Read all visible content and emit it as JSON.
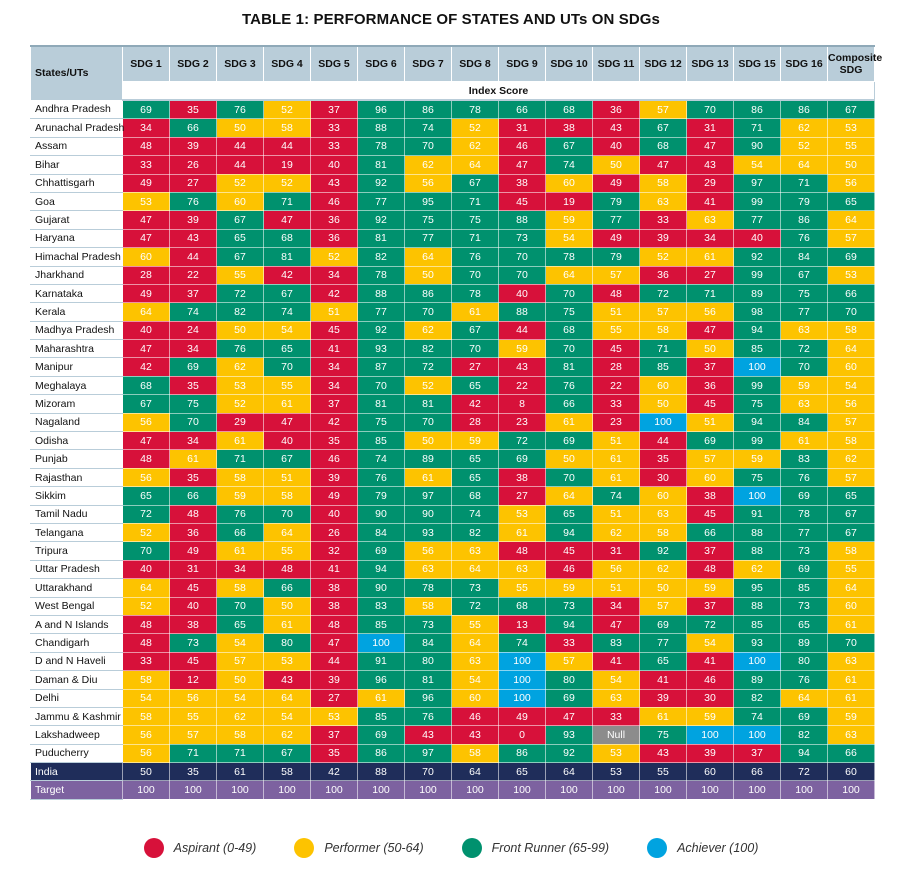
{
  "title": "TABLE 1: PERFORMANCE OF STATES AND UTs ON SDGs",
  "header": {
    "states_label": "States/UTs",
    "columns": [
      "SDG 1",
      "SDG 2",
      "SDG 3",
      "SDG 4",
      "SDG 5",
      "SDG 6",
      "SDG 7",
      "SDG 8",
      "SDG 9",
      "SDG 10",
      "SDG 11",
      "SDG 12",
      "SDG 13",
      "SDG 15",
      "SDG 16",
      "Composite SDG"
    ],
    "index_score_label": "Index Score"
  },
  "colors": {
    "aspirant": "#d7113a",
    "performer": "#fdc300",
    "front_runner": "#00916e",
    "achiever": "#00a3e0",
    "null": "#8c8c8c",
    "india": "#1f2d5a",
    "target": "#7d62a0",
    "header": "#b9cdd9"
  },
  "rows": [
    {
      "name": "Andhra Pradesh",
      "values": [
        69,
        35,
        76,
        52,
        37,
        96,
        86,
        78,
        66,
        68,
        36,
        57,
        70,
        86,
        86,
        67
      ]
    },
    {
      "name": "Arunachal Pradesh",
      "values": [
        34,
        66,
        50,
        58,
        33,
        88,
        74,
        52,
        31,
        38,
        43,
        67,
        31,
        71,
        62,
        53
      ]
    },
    {
      "name": "Assam",
      "values": [
        48,
        39,
        44,
        44,
        33,
        78,
        70,
        62,
        46,
        67,
        40,
        68,
        47,
        90,
        52,
        55
      ]
    },
    {
      "name": "Bihar",
      "values": [
        33,
        26,
        44,
        19,
        40,
        81,
        62,
        64,
        47,
        74,
        50,
        47,
        43,
        54,
        64,
        50
      ]
    },
    {
      "name": "Chhattisgarh",
      "values": [
        49,
        27,
        52,
        52,
        43,
        92,
        56,
        67,
        38,
        60,
        49,
        58,
        29,
        97,
        71,
        56
      ]
    },
    {
      "name": "Goa",
      "values": [
        53,
        76,
        60,
        71,
        46,
        77,
        95,
        71,
        45,
        19,
        79,
        63,
        41,
        99,
        79,
        65
      ]
    },
    {
      "name": "Gujarat",
      "values": [
        47,
        39,
        67,
        47,
        36,
        92,
        75,
        75,
        88,
        59,
        77,
        33,
        63,
        77,
        86,
        64
      ]
    },
    {
      "name": "Haryana",
      "values": [
        47,
        43,
        65,
        68,
        36,
        81,
        77,
        71,
        73,
        54,
        49,
        39,
        34,
        40,
        76,
        57
      ]
    },
    {
      "name": "Himachal Pradesh",
      "values": [
        60,
        44,
        67,
        81,
        52,
        82,
        64,
        76,
        70,
        78,
        79,
        52,
        61,
        92,
        84,
        69
      ]
    },
    {
      "name": "Jharkhand",
      "values": [
        28,
        22,
        55,
        42,
        34,
        78,
        50,
        70,
        70,
        64,
        57,
        36,
        27,
        99,
        67,
        53
      ]
    },
    {
      "name": "Karnataka",
      "values": [
        49,
        37,
        72,
        67,
        42,
        88,
        86,
        78,
        40,
        70,
        48,
        72,
        71,
        89,
        75,
        66
      ]
    },
    {
      "name": "Kerala",
      "values": [
        64,
        74,
        82,
        74,
        51,
        77,
        70,
        61,
        88,
        75,
        51,
        57,
        56,
        98,
        77,
        70
      ]
    },
    {
      "name": "Madhya Pradesh",
      "values": [
        40,
        24,
        50,
        54,
        45,
        92,
        62,
        67,
        44,
        68,
        55,
        58,
        47,
        94,
        63,
        58
      ]
    },
    {
      "name": "Maharashtra",
      "values": [
        47,
        34,
        76,
        65,
        41,
        93,
        82,
        70,
        59,
        70,
        45,
        71,
        50,
        85,
        72,
        64
      ]
    },
    {
      "name": "Manipur",
      "values": [
        42,
        69,
        62,
        70,
        34,
        87,
        72,
        27,
        43,
        81,
        28,
        85,
        37,
        100,
        70,
        60
      ]
    },
    {
      "name": "Meghalaya",
      "values": [
        68,
        35,
        53,
        55,
        34,
        70,
        52,
        65,
        22,
        76,
        22,
        60,
        36,
        99,
        59,
        54
      ]
    },
    {
      "name": "Mizoram",
      "values": [
        67,
        75,
        52,
        61,
        37,
        81,
        81,
        42,
        8,
        66,
        33,
        50,
        45,
        75,
        63,
        56
      ]
    },
    {
      "name": "Nagaland",
      "values": [
        56,
        70,
        29,
        47,
        42,
        75,
        70,
        28,
        23,
        61,
        23,
        100,
        51,
        94,
        84,
        57
      ]
    },
    {
      "name": "Odisha",
      "values": [
        47,
        34,
        61,
        40,
        35,
        85,
        50,
        59,
        72,
        69,
        51,
        44,
        69,
        99,
        61,
        58
      ]
    },
    {
      "name": "Punjab",
      "values": [
        48,
        61,
        71,
        67,
        46,
        74,
        89,
        65,
        69,
        50,
        61,
        35,
        57,
        59,
        83,
        62
      ]
    },
    {
      "name": "Rajasthan",
      "values": [
        56,
        35,
        58,
        51,
        39,
        76,
        61,
        65,
        38,
        70,
        61,
        30,
        60,
        75,
        76,
        57
      ]
    },
    {
      "name": "Sikkim",
      "values": [
        65,
        66,
        59,
        58,
        49,
        79,
        97,
        68,
        27,
        64,
        74,
        60,
        38,
        100,
        69,
        65
      ]
    },
    {
      "name": "Tamil Nadu",
      "values": [
        72,
        48,
        76,
        70,
        40,
        90,
        90,
        74,
        53,
        65,
        51,
        63,
        45,
        91,
        78,
        67
      ]
    },
    {
      "name": "Telangana",
      "values": [
        52,
        36,
        66,
        64,
        26,
        84,
        93,
        82,
        61,
        94,
        62,
        58,
        66,
        88,
        77,
        67
      ]
    },
    {
      "name": "Tripura",
      "values": [
        70,
        49,
        61,
        55,
        32,
        69,
        56,
        63,
        48,
        45,
        31,
        92,
        37,
        88,
        73,
        58
      ]
    },
    {
      "name": "Uttar Pradesh",
      "values": [
        40,
        31,
        34,
        48,
        41,
        94,
        63,
        64,
        63,
        46,
        56,
        62,
        48,
        62,
        69,
        55
      ]
    },
    {
      "name": "Uttarakhand",
      "values": [
        64,
        45,
        58,
        66,
        38,
        90,
        78,
        73,
        55,
        59,
        51,
        50,
        59,
        95,
        85,
        64
      ]
    },
    {
      "name": "West Bengal",
      "values": [
        52,
        40,
        70,
        50,
        38,
        83,
        58,
        72,
        68,
        73,
        34,
        57,
        37,
        88,
        73,
        60
      ]
    },
    {
      "name": "A and N Islands",
      "values": [
        48,
        38,
        65,
        61,
        48,
        85,
        73,
        55,
        13,
        94,
        47,
        69,
        72,
        85,
        65,
        61
      ]
    },
    {
      "name": "Chandigarh",
      "values": [
        48,
        73,
        54,
        80,
        47,
        100,
        84,
        64,
        74,
        33,
        83,
        77,
        54,
        93,
        89,
        70
      ]
    },
    {
      "name": "D and N Haveli",
      "values": [
        33,
        45,
        57,
        53,
        44,
        91,
        80,
        63,
        100,
        57,
        41,
        65,
        41,
        100,
        80,
        63
      ]
    },
    {
      "name": "Daman & Diu",
      "values": [
        58,
        12,
        50,
        43,
        39,
        96,
        81,
        54,
        100,
        80,
        54,
        41,
        46,
        89,
        76,
        61
      ]
    },
    {
      "name": "Delhi",
      "values": [
        54,
        56,
        54,
        64,
        27,
        61,
        96,
        60,
        100,
        69,
        63,
        39,
        30,
        82,
        64,
        61
      ]
    },
    {
      "name": "Jammu & Kashmir",
      "values": [
        58,
        55,
        62,
        54,
        53,
        85,
        76,
        46,
        49,
        47,
        33,
        61,
        59,
        74,
        69,
        59
      ]
    },
    {
      "name": "Lakshadweep",
      "values": [
        56,
        57,
        58,
        62,
        37,
        69,
        43,
        43,
        0,
        93,
        "Null",
        75,
        100,
        100,
        82,
        63
      ]
    },
    {
      "name": "Puducherry",
      "values": [
        56,
        71,
        71,
        67,
        35,
        86,
        97,
        58,
        86,
        92,
        53,
        43,
        39,
        37,
        94,
        66
      ]
    }
  ],
  "india": {
    "name": "India",
    "values": [
      50,
      35,
      61,
      58,
      42,
      88,
      70,
      64,
      65,
      64,
      53,
      55,
      60,
      66,
      72,
      60
    ]
  },
  "target": {
    "name": "Target",
    "values": [
      100,
      100,
      100,
      100,
      100,
      100,
      100,
      100,
      100,
      100,
      100,
      100,
      100,
      100,
      100,
      100
    ]
  },
  "legend": [
    {
      "label": "Aspirant (0-49)",
      "color": "#d7113a"
    },
    {
      "label": "Performer (50-64)",
      "color": "#fdc300"
    },
    {
      "label": "Front Runner (65-99)",
      "color": "#00916e"
    },
    {
      "label": "Achiever (100)",
      "color": "#00a3e0"
    }
  ]
}
